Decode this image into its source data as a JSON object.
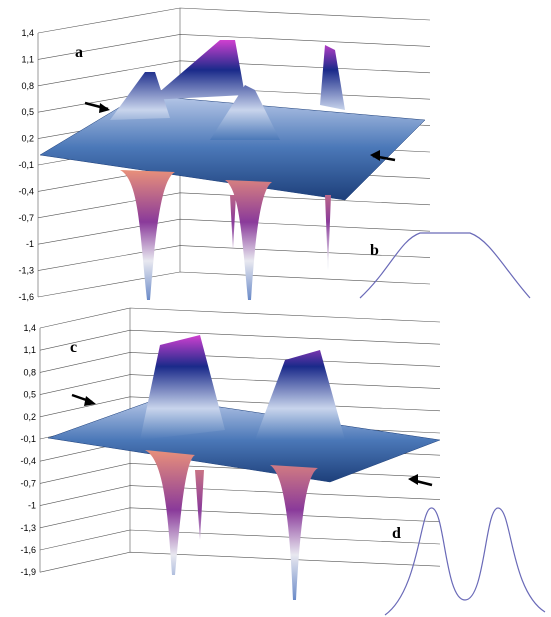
{
  "panels": [
    {
      "label": "a",
      "ticks": [
        "1,4",
        "1,1",
        "0,8",
        "0,5",
        "0,2",
        "-0,1",
        "-0,4",
        "-0,7",
        "-1",
        "-1,3",
        "-1,6"
      ]
    },
    {
      "label": "b"
    },
    {
      "label": "c",
      "ticks": [
        "1,4",
        "1,1",
        "0,8",
        "0,5",
        "0,2",
        "-0,1",
        "-0,4",
        "-0,7",
        "-1",
        "-1,3",
        "-1,6",
        "-1,9"
      ]
    },
    {
      "label": "d"
    }
  ]
}
